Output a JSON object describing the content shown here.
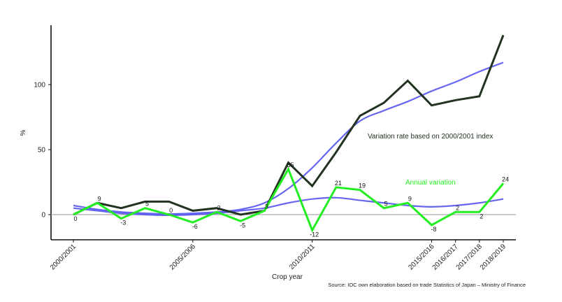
{
  "chart_data": {
    "type": "line",
    "xlabel": "Crop year",
    "ylabel": "%",
    "ylim": [
      -20,
      145
    ],
    "yticks": [
      0,
      50,
      100
    ],
    "x_tick_labels": [
      {
        "index": 0,
        "label": "2000/2001"
      },
      {
        "index": 5,
        "label": "2005/2006"
      },
      {
        "index": 10,
        "label": "2010/2011"
      },
      {
        "index": 15,
        "label": "2015/2016"
      },
      {
        "index": 16,
        "label": "2016/2017"
      },
      {
        "index": 17,
        "label": "2017/2018"
      },
      {
        "index": 18,
        "label": "2018/2019"
      }
    ],
    "zero_line": true,
    "grid": false,
    "series": [
      {
        "name": "Variation rate based on 2000/2001 index",
        "color": "#223322",
        "values": [
          0,
          9,
          5,
          10,
          10,
          3,
          5,
          0,
          3,
          40,
          22,
          48,
          76,
          86,
          103,
          84,
          88,
          91,
          138
        ]
      },
      {
        "name": "Annual variation",
        "color": "#22ee22",
        "values": [
          0,
          9,
          -3,
          5,
          0,
          -6,
          2,
          -5,
          3,
          35,
          -12,
          21,
          19,
          5,
          9,
          -8,
          2,
          2,
          24
        ],
        "labels": [
          "0",
          "9",
          "-3",
          "5",
          "0",
          "-6",
          "2",
          "-5",
          "3",
          "35",
          "-12",
          "21",
          "19",
          "5",
          "9",
          "-8",
          "2",
          "2",
          "24"
        ]
      },
      {
        "role": "trend",
        "color": "#5555ee",
        "values": [
          7,
          4,
          2,
          1,
          0.5,
          1,
          2,
          4,
          9,
          20,
          36,
          55,
          72,
          80,
          87,
          95,
          102,
          110,
          117
        ]
      },
      {
        "role": "trend",
        "color": "#5555ee",
        "values": [
          5,
          3,
          1,
          0,
          -0.5,
          0,
          1,
          3,
          5,
          9,
          12,
          13,
          11,
          9,
          7,
          6,
          7,
          9,
          12
        ]
      }
    ],
    "annotations": [
      {
        "text": "Variation rate based on 2000/2001 index",
        "color": "#223322"
      },
      {
        "text": "Annual variation",
        "color": "#22ee22"
      }
    ],
    "source": "Source: IOC own elaboration based on trade Statistics of Japan – Ministry of  Finance"
  }
}
